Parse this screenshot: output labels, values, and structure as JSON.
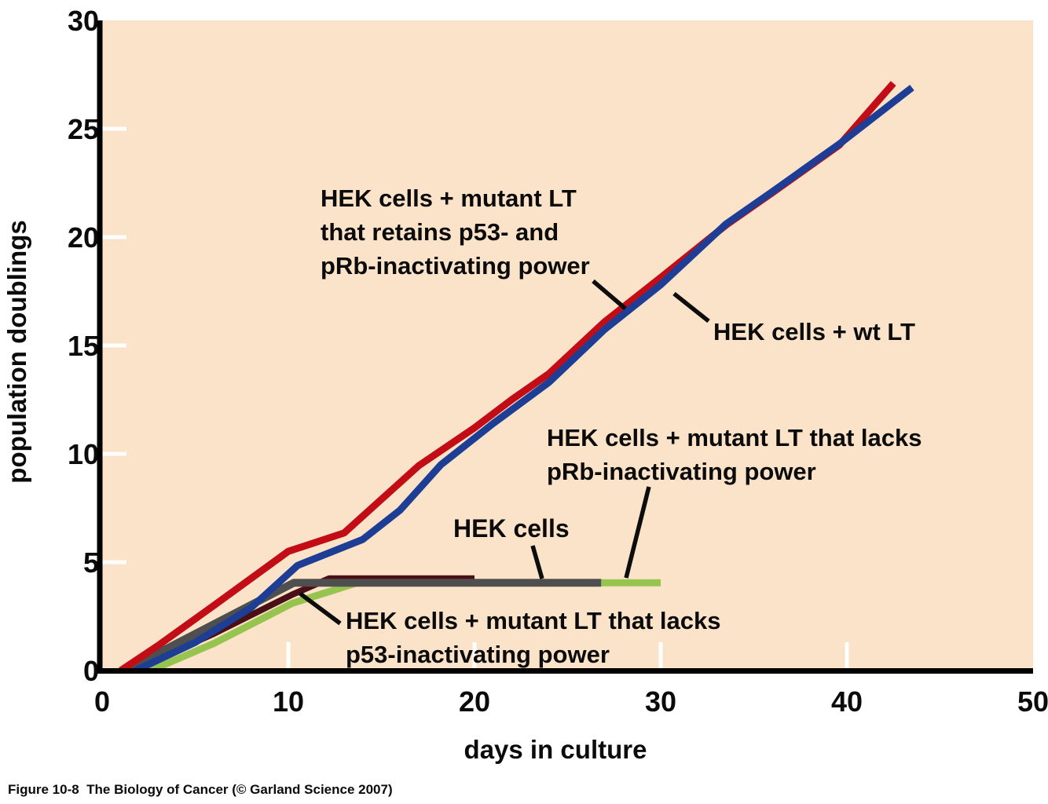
{
  "figure": {
    "caption": "Figure 10-8  The Biology of Cancer (© Garland Science 2007)"
  },
  "axes": {
    "x_title": "days in culture",
    "y_title": "population doublings"
  },
  "annotations": {
    "retains": {
      "lines": [
        "HEK cells + mutant LT",
        "that retains p53- and",
        "pRb-inactivating power"
      ]
    },
    "wt": {
      "label": "HEK cells + wt LT"
    },
    "hek": {
      "label": "HEK cells"
    },
    "lacks_prb": {
      "lines": [
        "HEK cells + mutant LT that lacks",
        "pRb-inactivating power"
      ]
    },
    "lacks_p53": {
      "lines": [
        "HEK cells + mutant LT that lacks",
        "p53-inactivating power"
      ]
    }
  },
  "chart_data": {
    "type": "line",
    "title": "",
    "xlabel": "days in culture",
    "ylabel": "population doublings",
    "xlim": [
      0,
      50
    ],
    "ylim": [
      0,
      30
    ],
    "xticks": [
      0,
      10,
      20,
      30,
      40,
      50
    ],
    "yticks": [
      0,
      5,
      10,
      15,
      20,
      25,
      30
    ],
    "grid": false,
    "legend_position": "annotated-on-plot",
    "plot_bg": "#fbe3c9",
    "tick_color": "#ffffff",
    "axis_color": "#000000",
    "series": [
      {
        "id": "retains",
        "name": "HEK cells + mutant LT that retains p53- and pRb-inactivating power",
        "color": "#c20d17",
        "width": 9,
        "points": [
          [
            1.0,
            0
          ],
          [
            3,
            1.15
          ],
          [
            6,
            3.0
          ],
          [
            10,
            5.5
          ],
          [
            13,
            6.35
          ],
          [
            15,
            7.9
          ],
          [
            17,
            9.45
          ],
          [
            20,
            11.2
          ],
          [
            22,
            12.5
          ],
          [
            24,
            13.7
          ],
          [
            27,
            16.1
          ],
          [
            30.1,
            18.2
          ],
          [
            33.5,
            20.55
          ],
          [
            36,
            22.05
          ],
          [
            39.6,
            24.25
          ],
          [
            42.5,
            27.1
          ]
        ]
      },
      {
        "id": "wt",
        "name": "HEK cells + wt LT",
        "color": "#1d3e94",
        "width": 9,
        "points": [
          [
            1.8,
            0
          ],
          [
            5,
            1.3
          ],
          [
            8,
            2.9
          ],
          [
            10.5,
            4.85
          ],
          [
            14,
            6.05
          ],
          [
            16,
            7.4
          ],
          [
            18.2,
            9.5
          ],
          [
            21,
            11.4
          ],
          [
            24,
            13.3
          ],
          [
            27,
            15.75
          ],
          [
            30,
            17.8
          ],
          [
            33.5,
            20.6
          ],
          [
            36,
            22.1
          ],
          [
            39.6,
            24.3
          ],
          [
            43.5,
            26.9
          ]
        ]
      },
      {
        "id": "hek",
        "name": "HEK cells",
        "color": "#4f4f4f",
        "width": 10,
        "points": [
          [
            1.2,
            0
          ],
          [
            10.3,
            4.05
          ],
          [
            26.8,
            4.05
          ]
        ]
      },
      {
        "id": "lacks_p53",
        "name": "HEK cells + mutant LT that lacks p53-inactivating power",
        "color": "#4b0f16",
        "width": 8,
        "points": [
          [
            1.6,
            0
          ],
          [
            6,
            1.7
          ],
          [
            10.2,
            3.5
          ],
          [
            12.2,
            4.25
          ],
          [
            20,
            4.25
          ]
        ]
      },
      {
        "id": "lacks_prb",
        "name": "HEK cells + mutant LT that lacks pRb-inactivating power",
        "color": "#96c44e",
        "width": 9,
        "points": [
          [
            2.6,
            0
          ],
          [
            6,
            1.25
          ],
          [
            10.2,
            3.1
          ],
          [
            13.7,
            4.05
          ],
          [
            30,
            4.05
          ]
        ]
      }
    ]
  }
}
